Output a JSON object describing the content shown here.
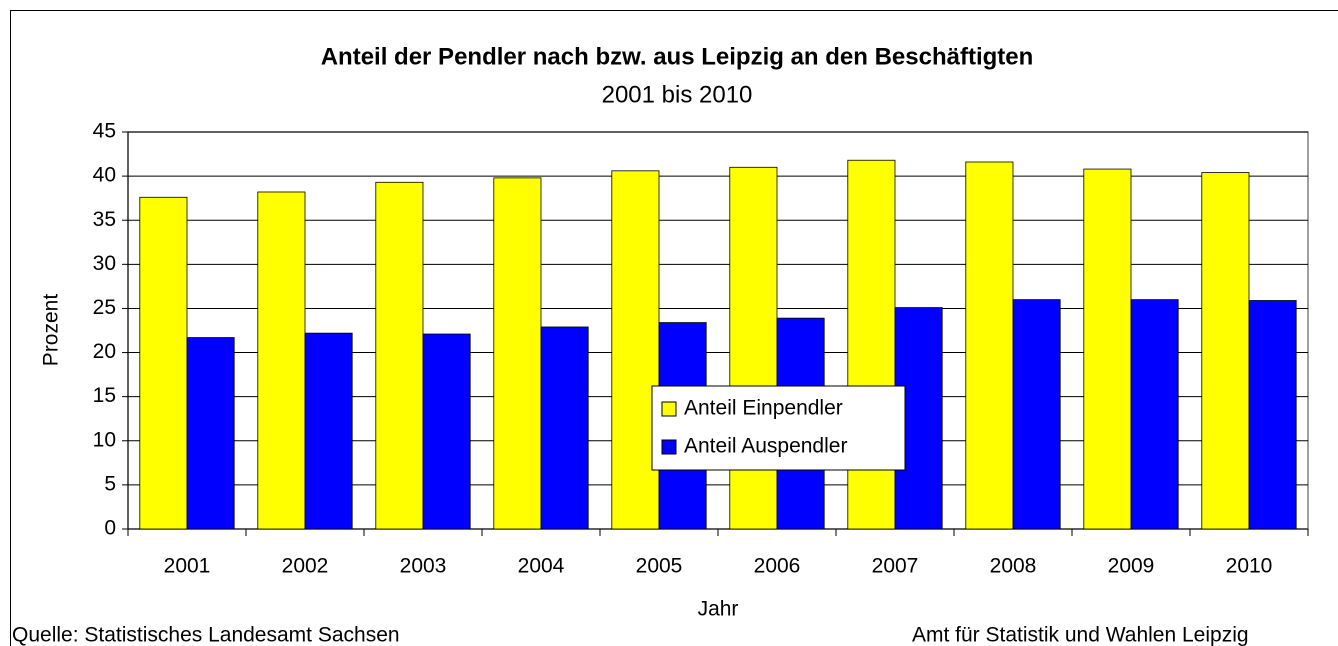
{
  "chart_data": {
    "type": "bar",
    "title": "Anteil der Pendler nach bzw. aus Leipzig an den Beschäftigten",
    "subtitle": "2001 bis 2010",
    "xlabel": "Jahr",
    "ylabel": "Prozent",
    "categories": [
      "2001",
      "2002",
      "2003",
      "2004",
      "2005",
      "2006",
      "2007",
      "2008",
      "2009",
      "2010"
    ],
    "series": [
      {
        "name": "Anteil Einpendler",
        "color": "#ffff00",
        "values": [
          37.6,
          38.2,
          39.3,
          39.8,
          40.6,
          41.0,
          41.8,
          41.6,
          40.8,
          40.4
        ]
      },
      {
        "name": "Anteil Auspendler",
        "color": "#0000ff",
        "values": [
          21.7,
          22.2,
          22.1,
          22.9,
          23.4,
          23.9,
          25.1,
          26.0,
          26.0,
          25.9
        ]
      }
    ],
    "ylim": [
      0,
      45
    ],
    "yticks": [
      0,
      5,
      10,
      15,
      20,
      25,
      30,
      35,
      40,
      45
    ],
    "grid": true,
    "legend": "center",
    "source": "Quelle: Statistisches Landesamt Sachsen",
    "credit": "Amt für Statistik und Wahlen Leipzig"
  }
}
